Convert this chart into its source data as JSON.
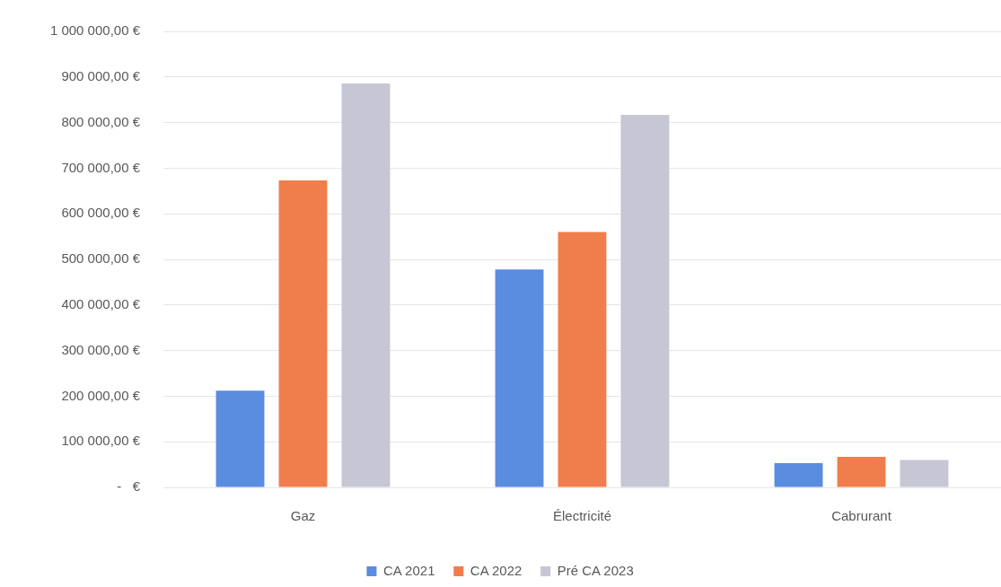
{
  "chart_data": {
    "type": "bar",
    "categories": [
      "Gaz",
      "Électricité",
      "Cabrurant"
    ],
    "series": [
      {
        "name": "CA 2021",
        "color": "#5a8ce0",
        "values": [
          212000,
          478000,
          53000
        ]
      },
      {
        "name": "CA 2022",
        "color": "#f07d4c",
        "values": [
          673000,
          560000,
          67000
        ]
      },
      {
        "name": "Pré CA 2023",
        "color": "#c6c6d4",
        "values": [
          886000,
          817000,
          60000
        ]
      }
    ],
    "ylim": [
      0,
      1000000
    ],
    "yticks": [
      {
        "value": 0,
        "label": "-   €"
      },
      {
        "value": 100000,
        "label": "100 000,00 €"
      },
      {
        "value": 200000,
        "label": "200 000,00 €"
      },
      {
        "value": 300000,
        "label": "300 000,00 €"
      },
      {
        "value": 400000,
        "label": "400 000,00 €"
      },
      {
        "value": 500000,
        "label": "500 000,00 €"
      },
      {
        "value": 600000,
        "label": "600 000,00 €"
      },
      {
        "value": 700000,
        "label": "700 000,00 €"
      },
      {
        "value": 800000,
        "label": "800 000,00 €"
      },
      {
        "value": 900000,
        "label": "900 000,00 €"
      },
      {
        "value": 1000000,
        "label": "1 000 000,00 €"
      }
    ],
    "grid": "y",
    "legend": "bottom"
  }
}
